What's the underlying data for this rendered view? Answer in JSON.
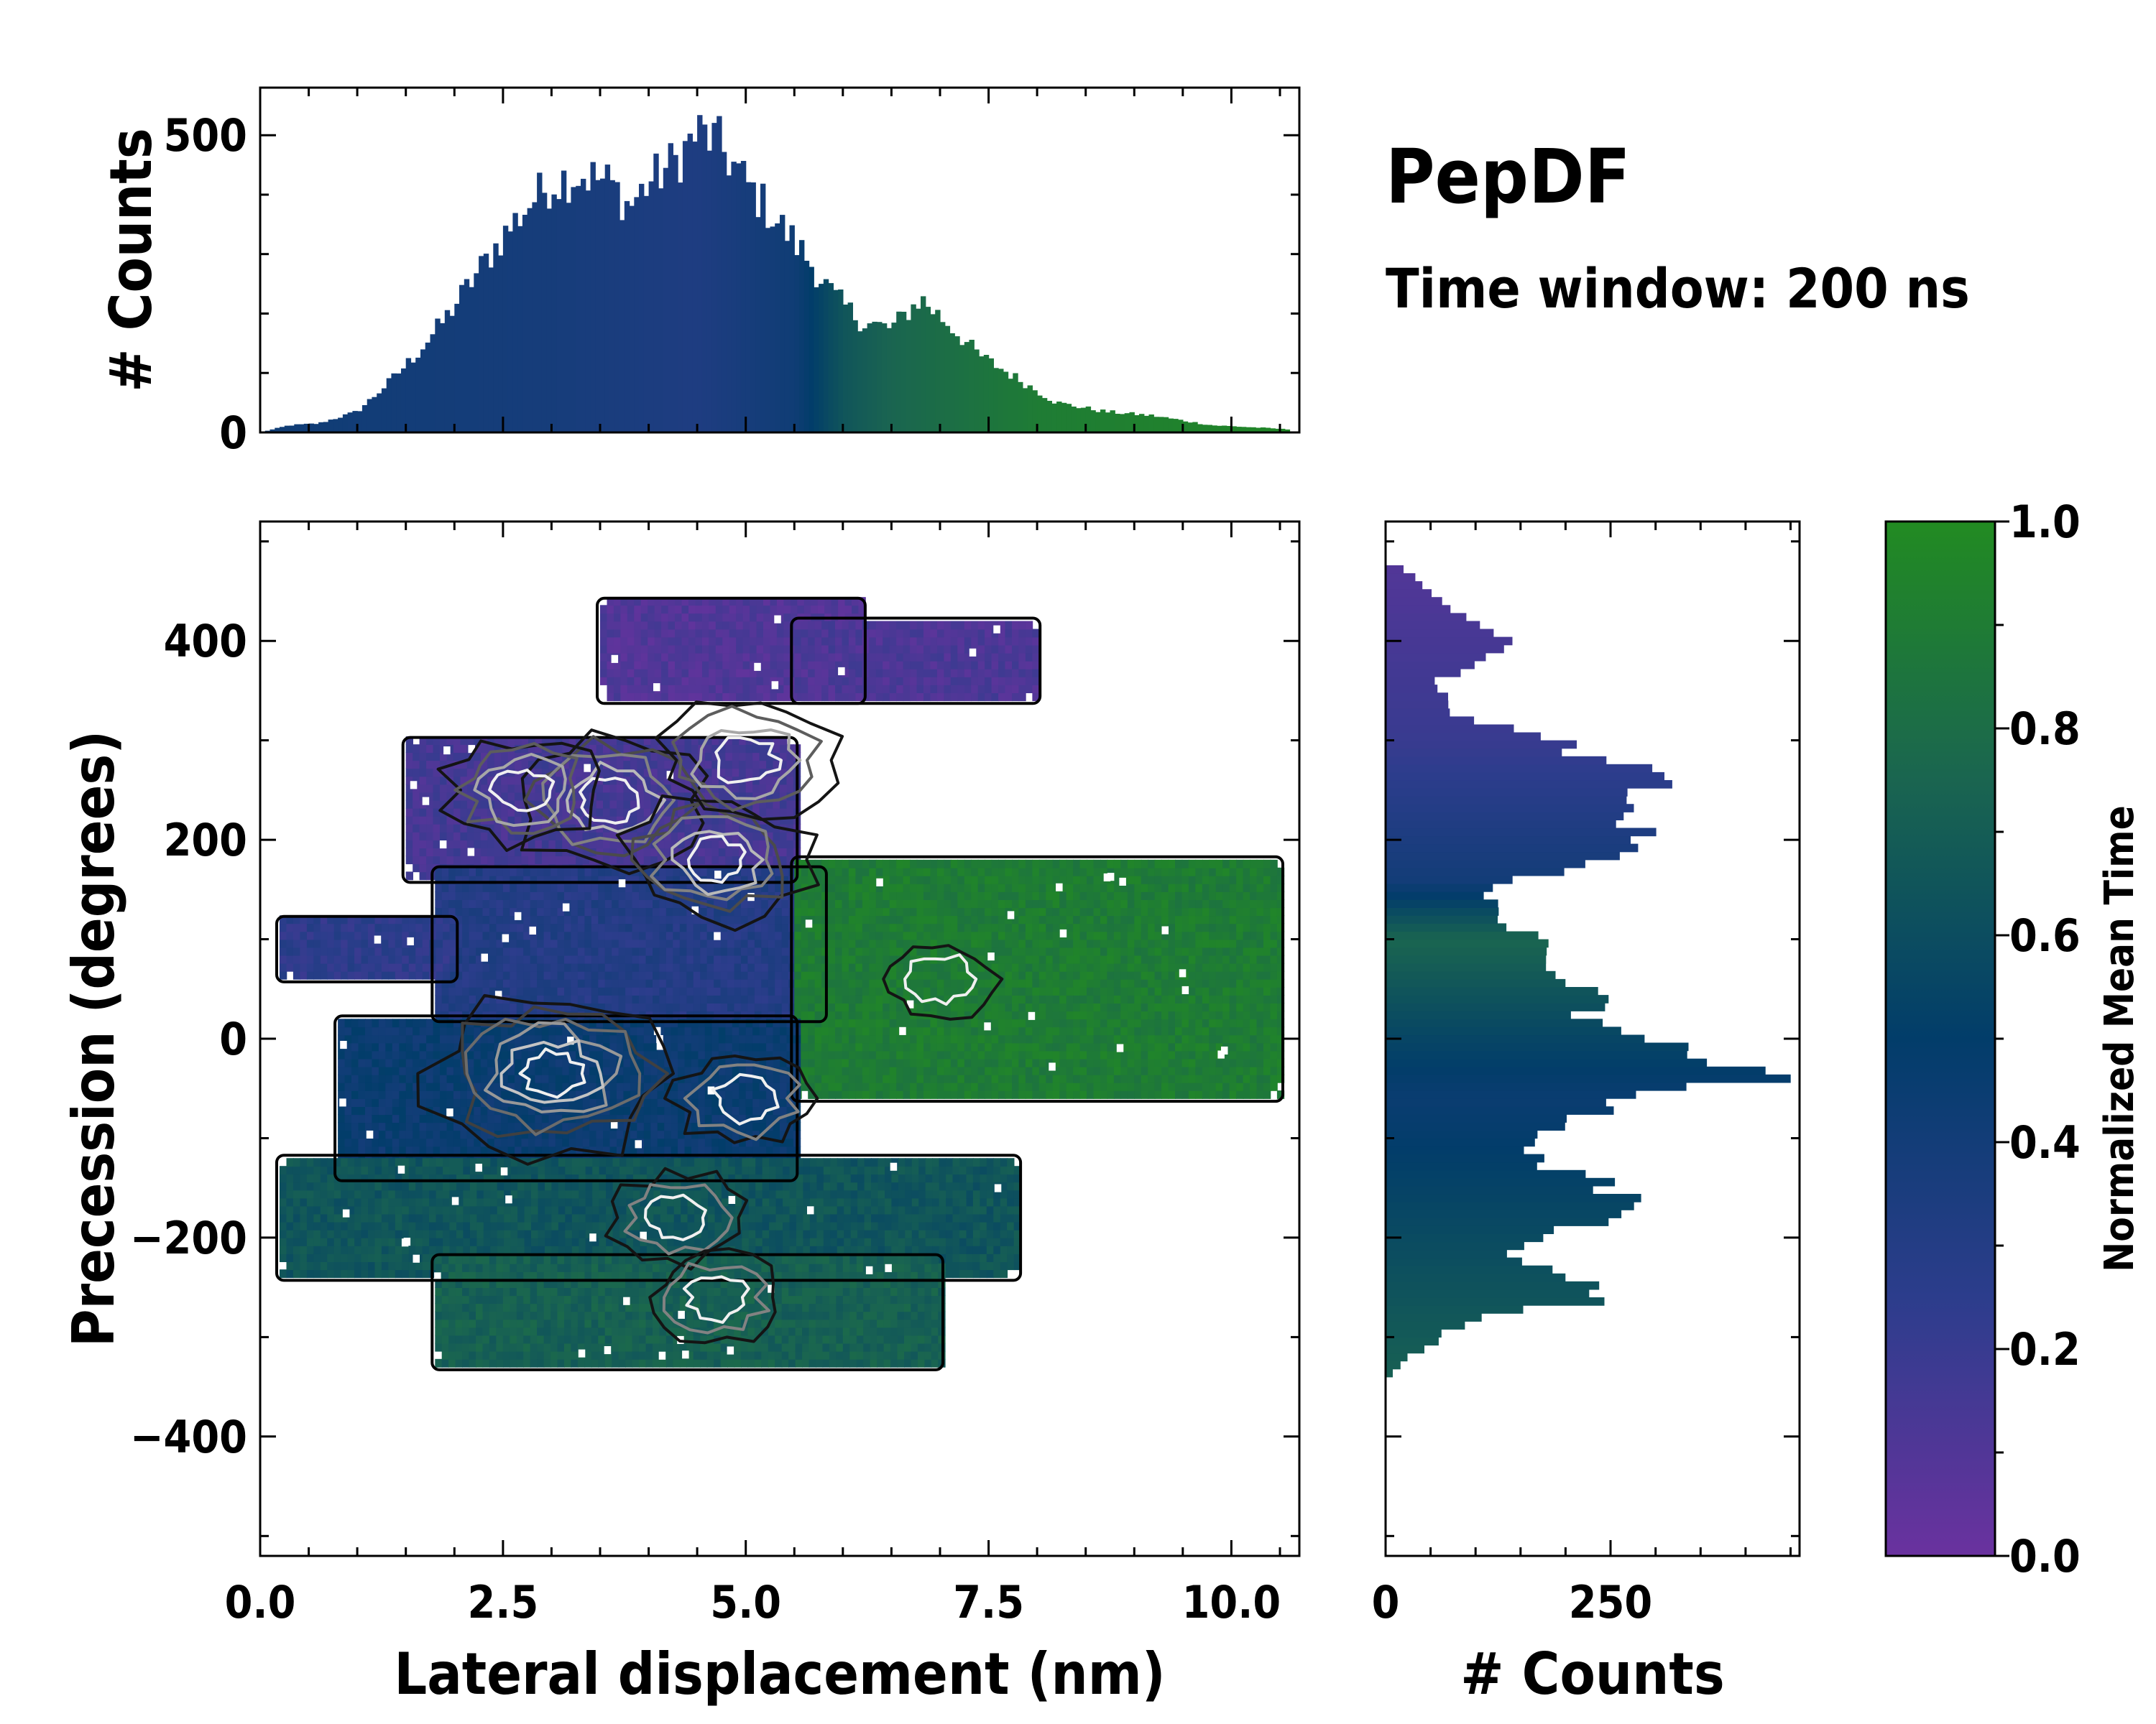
{
  "chart_data": [
    {
      "id": "top-histogram",
      "type": "bar",
      "xlim": [
        0.0,
        10.7
      ],
      "ylim": [
        0,
        580
      ],
      "ylabel": "# Counts",
      "yticks": [
        0,
        500
      ],
      "ytick_labels": [
        "0",
        "500"
      ],
      "bin_width": 0.05,
      "profile": {
        "x": [
          0.0,
          0.3,
          0.6,
          1.0,
          1.3,
          1.6,
          1.9,
          2.2,
          2.5,
          2.8,
          3.0,
          3.3,
          3.6,
          3.8,
          4.0,
          4.3,
          4.5,
          4.7,
          5.0,
          5.3,
          5.6,
          5.9,
          6.2,
          6.5,
          6.8,
          7.1,
          7.4,
          7.8,
          8.2,
          8.7,
          9.2,
          9.8,
          10.3,
          10.6
        ],
        "counts": [
          0,
          12,
          15,
          35,
          80,
          130,
          190,
          260,
          330,
          390,
          420,
          435,
          420,
          380,
          420,
          460,
          505,
          490,
          420,
          360,
          300,
          230,
          185,
          175,
          225,
          180,
          130,
          90,
          50,
          35,
          28,
          12,
          8,
          5
        ]
      },
      "color_mean_time": {
        "x": [
          0.0,
          3.0,
          4.5,
          5.5,
          6.0,
          6.5,
          8.0,
          10.6
        ],
        "t": [
          0.42,
          0.38,
          0.33,
          0.42,
          0.65,
          0.75,
          0.9,
          0.97
        ]
      }
    },
    {
      "id": "main-2d-histogram",
      "type": "heatmap",
      "xlabel": "Lateral displacement (nm)",
      "ylabel": "Precession (degrees)",
      "xlim": [
        0.0,
        10.7
      ],
      "ylim": [
        -520,
        520
      ],
      "xticks": [
        0.0,
        2.5,
        5.0,
        7.5,
        10.0
      ],
      "xtick_labels": [
        "0.0",
        "2.5",
        "5.0",
        "7.5",
        "10.0"
      ],
      "yticks": [
        -400,
        -200,
        0,
        200,
        400
      ],
      "ytick_labels": [
        "−400",
        "−200",
        "0",
        "200",
        "400"
      ],
      "color": "normalized mean time",
      "contours": "density contour lines from black (low) to white (high)",
      "regions": [
        {
          "x": [
            3.5,
            6.2
          ],
          "y": [
            340,
            440
          ],
          "t": 0.1,
          "label": "upper band"
        },
        {
          "x": [
            5.5,
            8.0
          ],
          "y": [
            340,
            420
          ],
          "t": 0.12,
          "label": "upper-right band"
        },
        {
          "x": [
            1.5,
            5.5
          ],
          "y": [
            160,
            300
          ],
          "t": 0.15,
          "label": "upper-left band"
        },
        {
          "x": [
            1.8,
            5.8
          ],
          "y": [
            20,
            170
          ],
          "t": 0.3,
          "label": "mid band"
        },
        {
          "x": [
            0.2,
            2.0
          ],
          "y": [
            60,
            120
          ],
          "t": 0.25,
          "label": "left stub"
        },
        {
          "x": [
            5.5,
            10.5
          ],
          "y": [
            -60,
            180
          ],
          "t": 0.9,
          "label": "right green band"
        },
        {
          "x": [
            0.8,
            5.5
          ],
          "y": [
            -140,
            20
          ],
          "t": 0.45,
          "label": "lower mid band"
        },
        {
          "x": [
            0.2,
            7.8
          ],
          "y": [
            -240,
            -120
          ],
          "t": 0.65,
          "label": "lower band"
        },
        {
          "x": [
            1.8,
            7.0
          ],
          "y": [
            -330,
            -220
          ],
          "t": 0.72,
          "label": "bottom band"
        }
      ],
      "density_peaks": [
        {
          "x": 3.0,
          "y": -35,
          "weight": 1.0
        },
        {
          "x": 3.6,
          "y": 240,
          "weight": 0.8
        },
        {
          "x": 4.7,
          "y": 180,
          "weight": 0.75
        },
        {
          "x": 5.0,
          "y": 280,
          "weight": 0.7
        },
        {
          "x": 2.7,
          "y": 250,
          "weight": 0.6
        },
        {
          "x": 5.0,
          "y": -60,
          "weight": 0.55
        },
        {
          "x": 4.3,
          "y": -180,
          "weight": 0.5
        },
        {
          "x": 4.7,
          "y": -260,
          "weight": 0.5
        },
        {
          "x": 7.0,
          "y": 60,
          "weight": 0.4
        }
      ]
    },
    {
      "id": "right-histogram",
      "type": "bar",
      "orientation": "horizontal",
      "xlabel": "# Counts",
      "xlim": [
        0,
        460
      ],
      "ylim": [
        -520,
        520
      ],
      "xticks": [
        0,
        250
      ],
      "xtick_labels": [
        "0",
        "250"
      ],
      "bin_width": 8,
      "profile": {
        "y": [
          470,
          450,
          420,
          400,
          380,
          360,
          330,
          300,
          280,
          260,
          240,
          220,
          200,
          180,
          160,
          140,
          120,
          100,
          80,
          60,
          40,
          20,
          0,
          -20,
          -40,
          -60,
          -80,
          -100,
          -120,
          -140,
          -160,
          -180,
          -200,
          -220,
          -240,
          -260,
          -280,
          -300,
          -320,
          -340
        ],
        "counts": [
          20,
          55,
          90,
          140,
          105,
          55,
          70,
          175,
          250,
          320,
          280,
          250,
          300,
          240,
          150,
          110,
          130,
          180,
          190,
          210,
          230,
          220,
          270,
          370,
          410,
          280,
          200,
          150,
          170,
          220,
          280,
          250,
          160,
          130,
          190,
          250,
          110,
          60,
          25,
          5
        ]
      },
      "color_mean_time": {
        "y": [
          470,
          300,
          160,
          100,
          0,
          -60,
          -340
        ],
        "t": [
          0.1,
          0.2,
          0.4,
          0.75,
          0.55,
          0.45,
          0.72
        ]
      }
    },
    {
      "id": "colorbar",
      "type": "colorbar",
      "label": "Normalized Mean Time",
      "range": [
        0.0,
        1.0
      ],
      "ticks": [
        0.0,
        0.2,
        0.4,
        0.6,
        0.8,
        1.0
      ],
      "tick_labels": [
        "0.0",
        "0.2",
        "0.4",
        "0.6",
        "0.8",
        "1.0"
      ],
      "colors": [
        "#6a329f",
        "#2c3d8c",
        "#023d6a",
        "#1a6550",
        "#228b22"
      ],
      "stops": [
        0.0,
        0.25,
        0.5,
        0.75,
        1.0
      ]
    }
  ],
  "annotation": {
    "title": "PepDF",
    "subtitle": "Time window: 200 ns"
  }
}
